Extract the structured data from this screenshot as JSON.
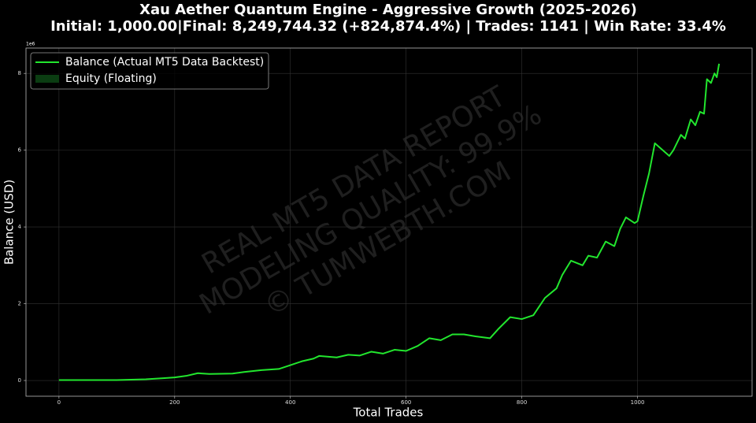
{
  "chart_data": {
    "type": "line",
    "title": "Xau Aether Quantum Engine - Aggressive Growth (2025-2026)",
    "subtitle": "Initial: 1,000.00|Final: 8,249,744.32 (+824,874.4%) | Trades: 1141 | Win Rate: 33.4%",
    "x_label": "Total Trades",
    "y_label": "Balance (USD)",
    "y_offset_label": "1e6",
    "watermark": [
      "REAL MT5 DATA REPORT",
      "MODELING QUALITY: 99.9%",
      "© TUMWEBTH.COM"
    ],
    "x": [
      0,
      100,
      150,
      180,
      200,
      220,
      240,
      260,
      300,
      320,
      350,
      380,
      400,
      420,
      440,
      450,
      480,
      500,
      520,
      540,
      560,
      580,
      600,
      620,
      640,
      660,
      680,
      700,
      720,
      745,
      760,
      780,
      800,
      820,
      840,
      860,
      870,
      885,
      905,
      915,
      930,
      945,
      960,
      970,
      980,
      995,
      1000,
      1010,
      1020,
      1030,
      1055,
      1062,
      1075,
      1082,
      1092,
      1100,
      1108,
      1115,
      1120,
      1127,
      1133,
      1137,
      1141
    ],
    "series": [
      {
        "name": "Balance (Actual MT5 Data Backtest)",
        "color": "#22e62e",
        "values": [
          0.01,
          0.01,
          0.03,
          0.06,
          0.08,
          0.12,
          0.19,
          0.17,
          0.18,
          0.22,
          0.27,
          0.3,
          0.4,
          0.5,
          0.57,
          0.64,
          0.6,
          0.67,
          0.65,
          0.75,
          0.7,
          0.8,
          0.77,
          0.9,
          1.1,
          1.05,
          1.2,
          1.2,
          1.15,
          1.1,
          1.35,
          1.65,
          1.6,
          1.7,
          2.15,
          2.4,
          2.75,
          3.12,
          3.0,
          3.25,
          3.2,
          3.62,
          3.5,
          3.95,
          4.25,
          4.1,
          4.15,
          4.8,
          5.4,
          6.18,
          5.85,
          6.0,
          6.4,
          6.3,
          6.8,
          6.65,
          7.0,
          6.95,
          7.85,
          7.75,
          8.0,
          7.9,
          8.25
        ]
      }
    ],
    "fill_legend": {
      "name": "Equity (Floating)",
      "color": "#0b3d12"
    },
    "xlim": [
      -57,
      1198
    ],
    "ylim": [
      -0.41,
      8.66
    ],
    "xticks": [
      0,
      200,
      400,
      600,
      800,
      1000
    ],
    "yticks": [
      0,
      2,
      4,
      6,
      8
    ],
    "grid": true,
    "legend": "upper left"
  }
}
